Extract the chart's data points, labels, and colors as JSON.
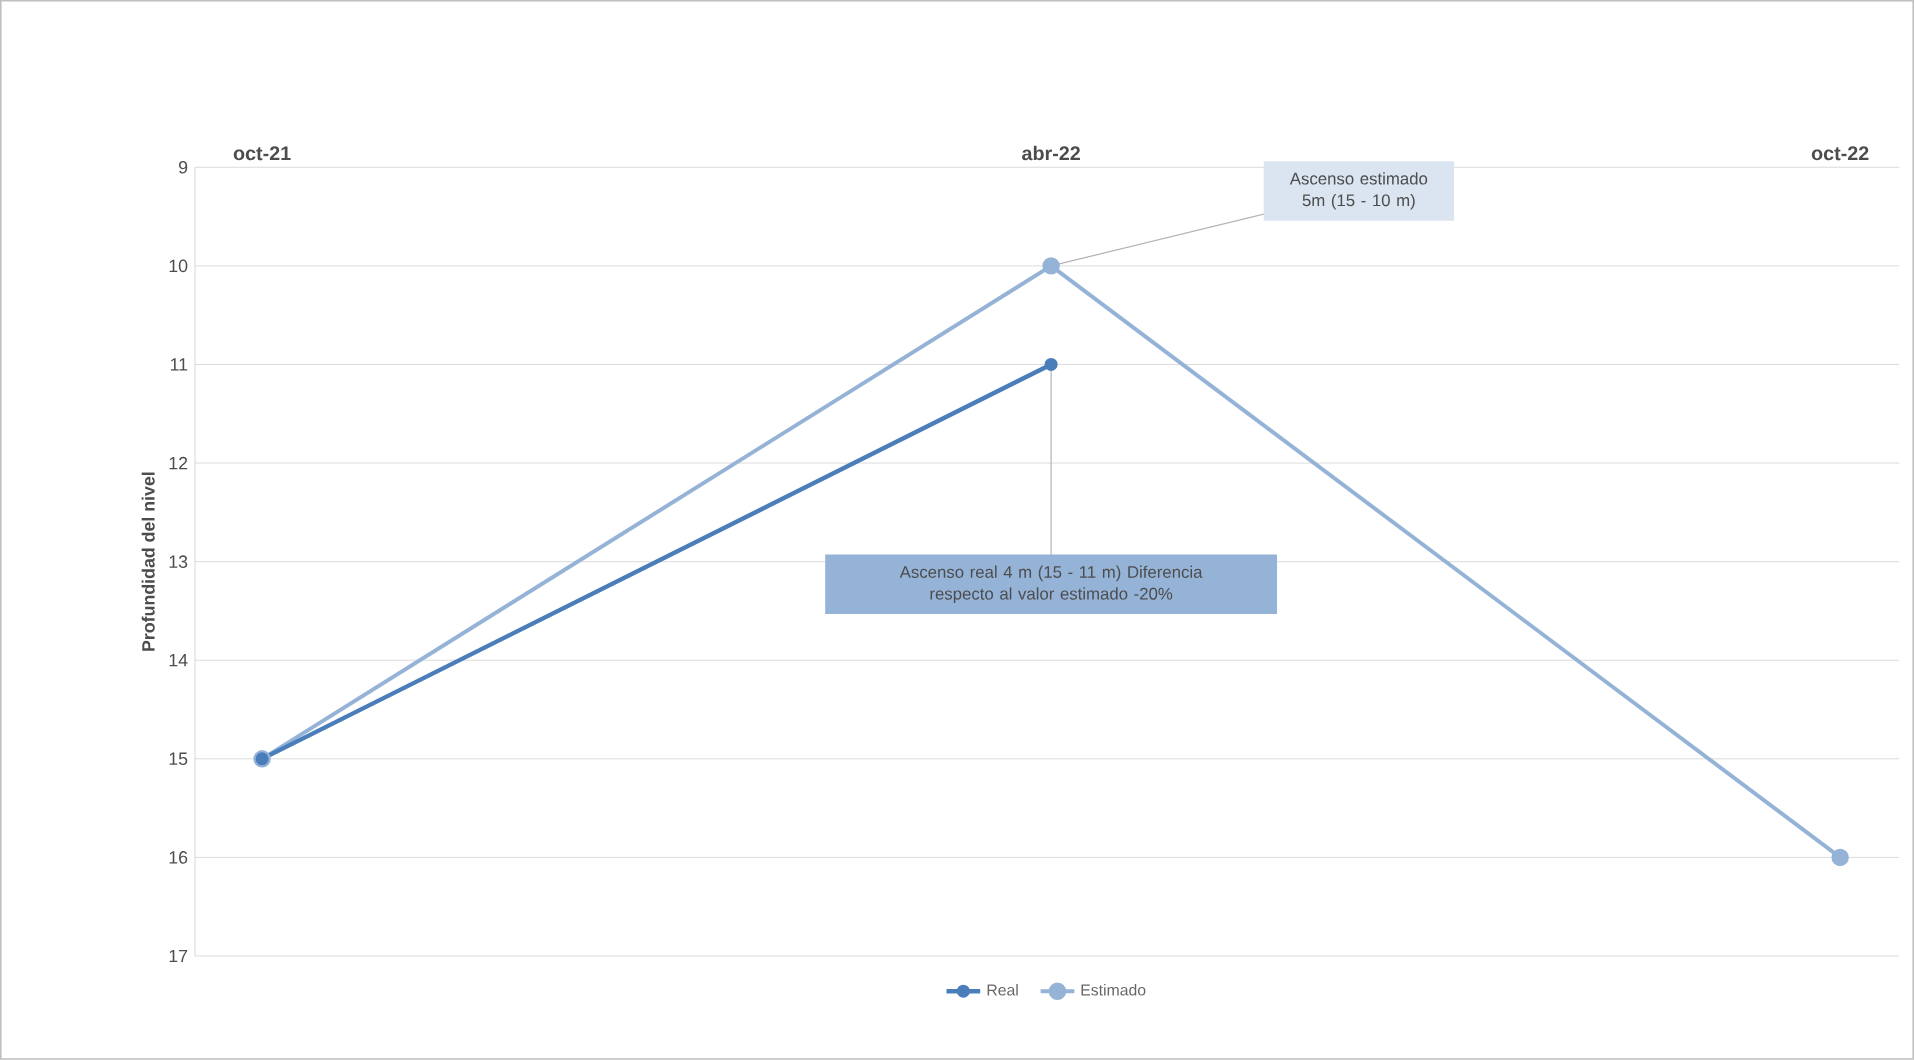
{
  "chart_data": {
    "type": "line",
    "ylabel": "Profundidad del nivel",
    "categories": [
      "oct-21",
      "abr-22",
      "oct-22"
    ],
    "series": [
      {
        "name": "Real",
        "color": "#4a7ebb",
        "values": [
          15,
          11,
          null
        ]
      },
      {
        "name": "Estimado",
        "color": "#95b3d7",
        "values": [
          15,
          10,
          16
        ]
      }
    ],
    "ylim": [
      17,
      9
    ],
    "yticks": [
      9,
      10,
      11,
      12,
      13,
      14,
      15,
      16,
      17
    ],
    "grid": "y",
    "legend": "bottom",
    "marker": "circle",
    "line_style": "solid",
    "annotations": [
      {
        "text": "Ascenso estimado 5m (15 - 10 m)",
        "x": "abr-22",
        "y": 10
      },
      {
        "text": "Ascenso real 4 m (15 - 11 m) Diferencia respecto al valor estimado -20%",
        "x": "abr-22",
        "y": 11
      }
    ]
  }
}
